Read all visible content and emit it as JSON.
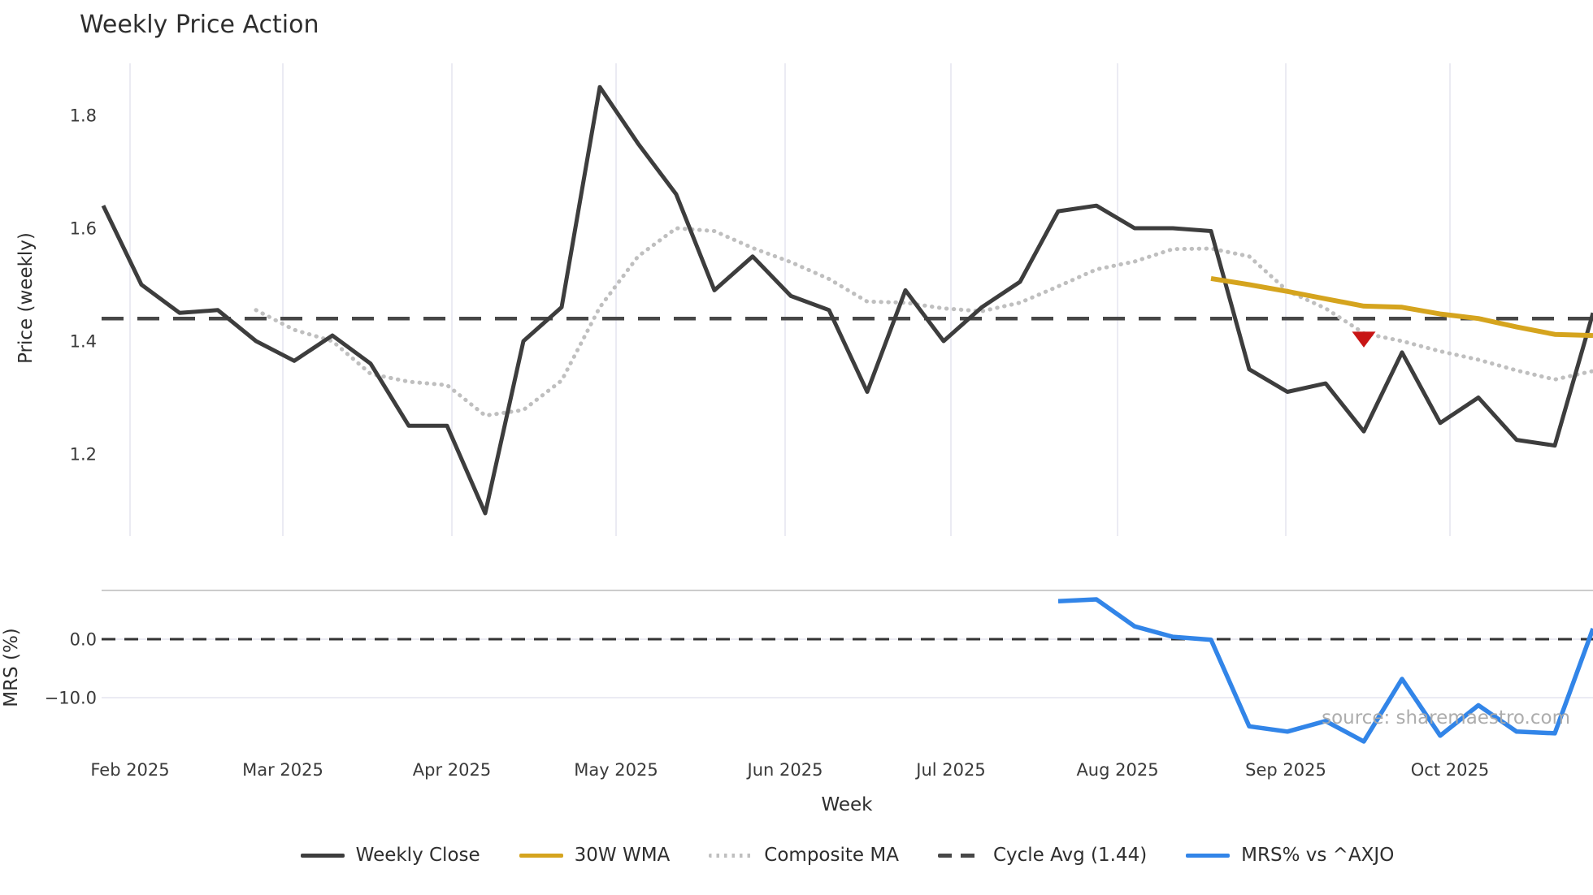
{
  "title": "Weekly Price Action",
  "source_note": "source: sharemaestro.com",
  "chart_data": {
    "type": "line",
    "title": "Weekly Price Action",
    "xlabel": "Week",
    "x_unit": "weekly index, 40 points spanning late Jan 2025 to early Nov 2025",
    "grid": "vertical month gridlines on price panel; horizontal gridlines at 0 and -10 on MRS panel",
    "legend_position": "bottom center",
    "x_month_ticks": [
      {
        "label": "Feb 2025",
        "week": 0.702
      },
      {
        "label": "Mar 2025",
        "week": 4.702
      },
      {
        "label": "Apr 2025",
        "week": 9.128
      },
      {
        "label": "May 2025",
        "week": 13.426
      },
      {
        "label": "Jun 2025",
        "week": 17.851
      },
      {
        "label": "Jul 2025",
        "week": 22.191
      },
      {
        "label": "Aug 2025",
        "week": 26.553
      },
      {
        "label": "Sep 2025",
        "week": 30.957
      },
      {
        "label": "Oct 2025",
        "week": 35.255
      }
    ],
    "panels": [
      {
        "name": "price",
        "ylabel": "Price (weekly)",
        "ylim": [
          1.05,
          1.89
        ],
        "yticks": [
          {
            "value": 1.8,
            "label": "1.8"
          },
          {
            "value": 1.6,
            "label": "1.6"
          },
          {
            "value": 1.4,
            "label": "1.4"
          },
          {
            "value": 1.2,
            "label": "1.2"
          }
        ]
      },
      {
        "name": "mrs",
        "ylabel": "MRS (%)",
        "ylim": [
          -20.5,
          8.2
        ],
        "yticks": [
          {
            "value": 0,
            "label": "0.0"
          },
          {
            "value": -10,
            "label": "−10.0"
          }
        ]
      }
    ],
    "series": [
      {
        "name": "Weekly Close",
        "panel": "price",
        "color": "#3d3d3d",
        "style": "solid",
        "width": 5,
        "start_week": 0,
        "values": [
          1.64,
          1.5,
          1.45,
          1.455,
          1.4,
          1.365,
          1.41,
          1.36,
          1.25,
          1.25,
          1.095,
          1.4,
          1.46,
          1.85,
          1.75,
          1.66,
          1.49,
          1.55,
          1.48,
          1.455,
          1.31,
          1.49,
          1.4,
          1.46,
          1.505,
          1.63,
          1.64,
          1.6,
          1.6,
          1.595,
          1.35,
          1.31,
          1.325,
          1.24,
          1.38,
          1.255,
          1.3,
          1.225,
          1.215,
          1.45
        ]
      },
      {
        "name": "30W WMA",
        "panel": "price",
        "color": "#d5a41e",
        "style": "solid",
        "width": 6,
        "start_week": 29,
        "values": [
          1.511,
          1.5,
          1.488,
          1.475,
          1.462,
          1.46,
          1.448,
          1.44,
          1.425,
          1.412,
          1.41
        ]
      },
      {
        "name": "Composite MA",
        "panel": "price",
        "color": "#bfbfbf",
        "style": "dotted",
        "width": 5,
        "start_week": 4,
        "values": [
          1.455,
          1.42,
          1.4,
          1.342,
          1.328,
          1.322,
          1.268,
          1.278,
          1.33,
          1.46,
          1.55,
          1.6,
          1.595,
          1.565,
          1.54,
          1.51,
          1.47,
          1.468,
          1.458,
          1.453,
          1.468,
          1.497,
          1.527,
          1.541,
          1.563,
          1.564,
          1.55,
          1.489,
          1.458,
          1.414,
          1.4,
          1.382,
          1.367,
          1.348,
          1.332,
          1.347
        ]
      },
      {
        "name": "Cycle Avg (1.44)",
        "panel": "price",
        "color": "#474747",
        "style": "dashed",
        "width": 4.5,
        "constant": 1.44
      },
      {
        "name": "MRS% vs ^AXJO",
        "panel": "mrs",
        "color": "#3285e8",
        "style": "solid",
        "width": 5.5,
        "start_week": 25,
        "values": [
          6.5,
          6.8,
          2.2,
          0.4,
          -0.1,
          -14.9,
          -15.8,
          -14.0,
          -17.5,
          -6.8,
          -16.5,
          -11.3,
          -15.8,
          -16.1,
          1.8
        ]
      }
    ],
    "markers": [
      {
        "type": "triangle-down",
        "color": "#c81515",
        "week": 33,
        "value": 1.403
      }
    ],
    "mrs_zero_line": {
      "value": 0,
      "color": "#333333",
      "style": "dashed"
    }
  }
}
